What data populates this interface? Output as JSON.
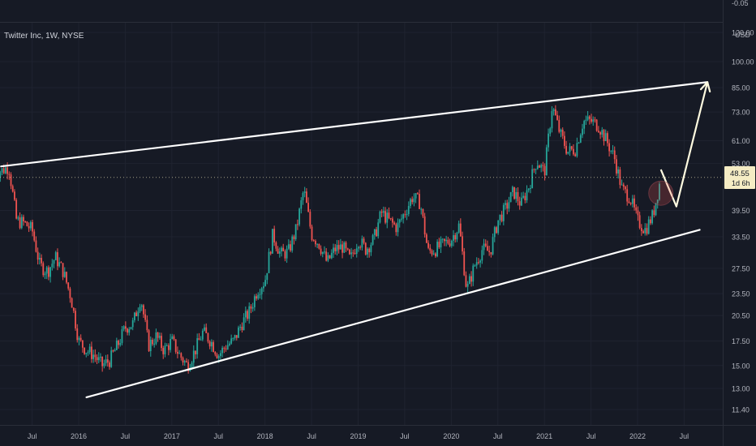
{
  "window": {
    "symbol_title": "Twitter Inc, 1W, NYSE"
  },
  "price_badge": {
    "price": "48.55",
    "countdown": "1d 6h"
  },
  "colors": {
    "background": "#161a25",
    "axis_text": "#b2b5be",
    "grid": "#1f2330",
    "up": "#26a69a",
    "down": "#ef5350",
    "trendline": "#ffffff",
    "projection": "#fffbe0",
    "badge_bg": "#f5ecc4",
    "badge_text": "#131722"
  },
  "chart_data": {
    "type": "candlestick",
    "title": "Twitter Inc, 1W, NYSE",
    "y_axis": {
      "scale": "log",
      "unit": "USD",
      "ticks": [
        "120.00",
        "100.00",
        "85.00",
        "73.00",
        "61.00",
        "53.00",
        "39.50",
        "33.50",
        "27.50",
        "23.50",
        "20.50",
        "17.50",
        "15.00",
        "13.00",
        "11.40"
      ],
      "top_cut_label": "-0.05",
      "range": [
        10.5,
        130
      ]
    },
    "x_axis": {
      "ticks": [
        "Jul",
        "2016",
        "Jul",
        "2017",
        "Jul",
        "2018",
        "Jul",
        "2019",
        "Jul",
        "2020",
        "Jul",
        "2021",
        "Jul",
        "2022",
        "Jul"
      ],
      "range": [
        "2015-03",
        "2022-10"
      ]
    },
    "last_price": 48.55,
    "close_path": [
      [
        "2015-03",
        50.5
      ],
      [
        "2015-04",
        52.0
      ],
      [
        "2015-05",
        37.0
      ],
      [
        "2015-06",
        36.5
      ],
      [
        "2015-07",
        35.0
      ],
      [
        "2015-08",
        28.0
      ],
      [
        "2015-09",
        27.0
      ],
      [
        "2015-10",
        29.5
      ],
      [
        "2015-11",
        27.0
      ],
      [
        "2015-12",
        23.0
      ],
      [
        "2016-01",
        17.5
      ],
      [
        "2016-02",
        16.5
      ],
      [
        "2016-03",
        16.0
      ],
      [
        "2016-04",
        15.0
      ],
      [
        "2016-05",
        15.5
      ],
      [
        "2016-06",
        17.0
      ],
      [
        "2016-07",
        19.0
      ],
      [
        "2016-08",
        19.5
      ],
      [
        "2016-09",
        23.0
      ],
      [
        "2016-10",
        17.0
      ],
      [
        "2016-11",
        18.0
      ],
      [
        "2016-12",
        16.5
      ],
      [
        "2017-01",
        17.5
      ],
      [
        "2017-02",
        16.0
      ],
      [
        "2017-03",
        15.0
      ],
      [
        "2017-04",
        16.5
      ],
      [
        "2017-05",
        18.5
      ],
      [
        "2017-06",
        17.5
      ],
      [
        "2017-07",
        16.0
      ],
      [
        "2017-08",
        17.0
      ],
      [
        "2017-09",
        17.5
      ],
      [
        "2017-10",
        19.5
      ],
      [
        "2017-11",
        21.0
      ],
      [
        "2017-12",
        24.0
      ],
      [
        "2018-01",
        25.5
      ],
      [
        "2018-02",
        34.0
      ],
      [
        "2018-03",
        30.0
      ],
      [
        "2018-04",
        30.5
      ],
      [
        "2018-05",
        35.0
      ],
      [
        "2018-06",
        45.0
      ],
      [
        "2018-07",
        34.0
      ],
      [
        "2018-08",
        32.0
      ],
      [
        "2018-09",
        28.5
      ],
      [
        "2018-10",
        31.0
      ],
      [
        "2018-11",
        31.5
      ],
      [
        "2018-12",
        29.0
      ],
      [
        "2019-01",
        33.0
      ],
      [
        "2019-02",
        31.0
      ],
      [
        "2019-03",
        33.0
      ],
      [
        "2019-04",
        39.0
      ],
      [
        "2019-05",
        37.0
      ],
      [
        "2019-06",
        35.5
      ],
      [
        "2019-07",
        39.0
      ],
      [
        "2019-08",
        43.0
      ],
      [
        "2019-09",
        41.5
      ],
      [
        "2019-10",
        30.5
      ],
      [
        "2019-11",
        31.0
      ],
      [
        "2019-12",
        32.0
      ],
      [
        "2020-01",
        33.0
      ],
      [
        "2020-02",
        36.0
      ],
      [
        "2020-03",
        24.0
      ],
      [
        "2020-04",
        28.0
      ],
      [
        "2020-05",
        31.0
      ],
      [
        "2020-06",
        30.5
      ],
      [
        "2020-07",
        37.0
      ],
      [
        "2020-08",
        40.0
      ],
      [
        "2020-09",
        44.5
      ],
      [
        "2020-10",
        41.0
      ],
      [
        "2020-11",
        46.0
      ],
      [
        "2020-12",
        54.0
      ],
      [
        "2021-01",
        50.0
      ],
      [
        "2021-02",
        76.0
      ],
      [
        "2021-03",
        64.0
      ],
      [
        "2021-04",
        57.0
      ],
      [
        "2021-05",
        58.0
      ],
      [
        "2021-06",
        69.0
      ],
      [
        "2021-07",
        69.0
      ],
      [
        "2021-08",
        67.0
      ],
      [
        "2021-09",
        61.0
      ],
      [
        "2021-10",
        55.0
      ],
      [
        "2021-11",
        45.0
      ],
      [
        "2021-12",
        43.0
      ],
      [
        "2022-01",
        37.0
      ],
      [
        "2022-02",
        35.0
      ],
      [
        "2022-03",
        38.5
      ],
      [
        "2022-04",
        48.55
      ]
    ],
    "annotations": [
      {
        "type": "trendline",
        "from": [
          "2015-03",
          52.0
        ],
        "to": [
          "2022-10",
          88.0
        ]
      },
      {
        "type": "trendline",
        "from": [
          "2016-02",
          12.3
        ],
        "to": [
          "2022-09",
          35.0
        ]
      },
      {
        "type": "projection",
        "points": [
          [
            "2022-04",
            51.0
          ],
          [
            "2022-06",
            40.5
          ],
          [
            "2022-10",
            88.0
          ]
        ]
      },
      {
        "type": "circle",
        "center": [
          "2022-04",
          44.0
        ]
      }
    ]
  }
}
